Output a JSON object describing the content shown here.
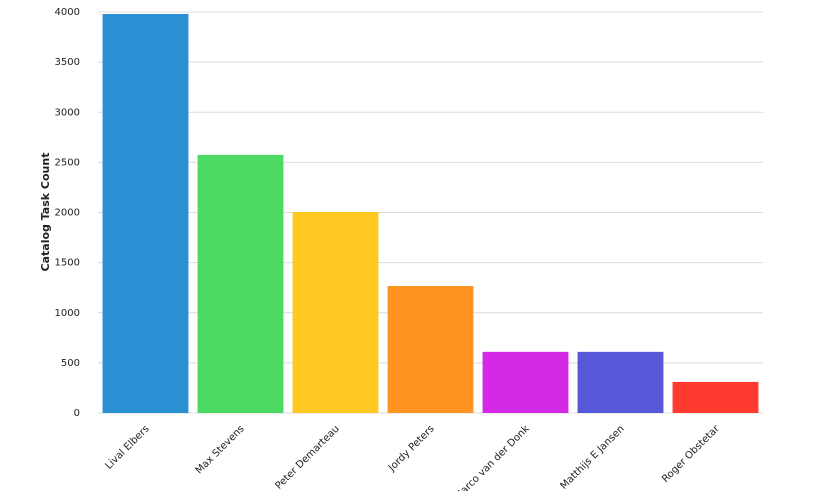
{
  "chart_data": {
    "type": "bar",
    "y_label": "Catalog Task Count",
    "categories": [
      "Lival Elbers",
      "Max Stevens",
      "Peter Demarteau",
      "Jordy Peters",
      "Marco van der Donk",
      "Matthijs E Jansen",
      "Roger Obstetar"
    ],
    "values": [
      3980,
      2575,
      2005,
      1267,
      610,
      610,
      310
    ],
    "colors": [
      "#2b8fd4",
      "#4cd964",
      "#ffc823",
      "#ff9520",
      "#d42ae8",
      "#5658d8",
      "#ff3b30"
    ],
    "ylim": [
      0,
      4000
    ],
    "yticks": [
      0,
      500,
      1000,
      1500,
      2000,
      2500,
      3000,
      3500,
      4000
    ],
    "grid": true
  }
}
